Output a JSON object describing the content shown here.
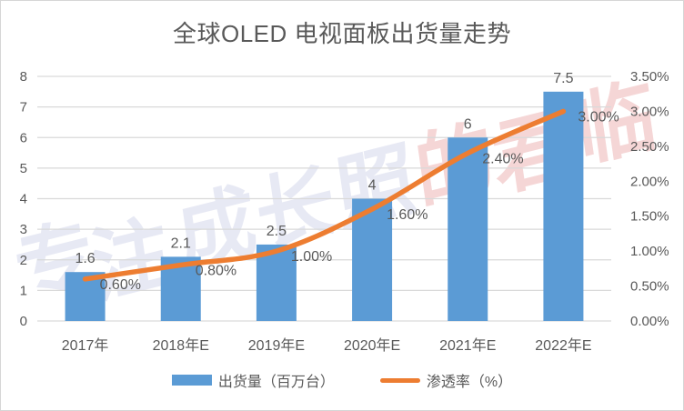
{
  "title": "全球OLED 电视面板出货量走势",
  "chart_data": {
    "type": "bar",
    "subtype": "combo-bar-line",
    "title": "全球OLED 电视面板出货量走势",
    "categories": [
      "2017年",
      "2018年E",
      "2019年E",
      "2020年E",
      "2021年E",
      "2022年E"
    ],
    "series": [
      {
        "name": "出货量（百万台）",
        "type": "bar",
        "axis": "left",
        "color": "#5B9BD5",
        "values": [
          1.6,
          2.1,
          2.5,
          4,
          6,
          7.5
        ],
        "labels": [
          "1.6",
          "2.1",
          "2.5",
          "4",
          "6",
          "7.5"
        ]
      },
      {
        "name": "渗透率（%）",
        "type": "line",
        "axis": "right",
        "color": "#ED7D31",
        "values": [
          0.6,
          0.8,
          1.0,
          1.6,
          2.4,
          3.0
        ],
        "labels": [
          "0.60%",
          "0.80%",
          "1.00%",
          "1.60%",
          "2.40%",
          "3.00%"
        ]
      }
    ],
    "left_axis": {
      "min": 0,
      "max": 8,
      "step": 1,
      "ticks": [
        "0",
        "1",
        "2",
        "3",
        "4",
        "5",
        "6",
        "7",
        "8"
      ]
    },
    "right_axis": {
      "min": 0,
      "max": 3.5,
      "step": 0.5,
      "ticks": [
        "0.00%",
        "0.50%",
        "1.00%",
        "1.50%",
        "2.00%",
        "2.50%",
        "3.00%",
        "3.50%"
      ]
    },
    "grid": true,
    "legend_position": "bottom",
    "xlabel": "",
    "ylabel": ""
  },
  "legend": {
    "items": [
      {
        "label": "出货量（百万台）",
        "color": "#5B9BD5",
        "kind": "bar"
      },
      {
        "label": "渗透率（%）",
        "color": "#ED7D31",
        "kind": "line"
      }
    ]
  },
  "watermark": {
    "text": "专注成长照的君临",
    "colors": [
      "#e7e9f4",
      "#e7e9f4",
      "#e7e9f4",
      "#e7e9f4",
      "#e7e9f4",
      "#f5d6d6",
      "#f5d6d6",
      "#f5d6d6"
    ]
  },
  "colors": {
    "bar": "#5B9BD5",
    "line": "#ED7D31",
    "text": "#595959",
    "grid": "#D9D9D9"
  }
}
